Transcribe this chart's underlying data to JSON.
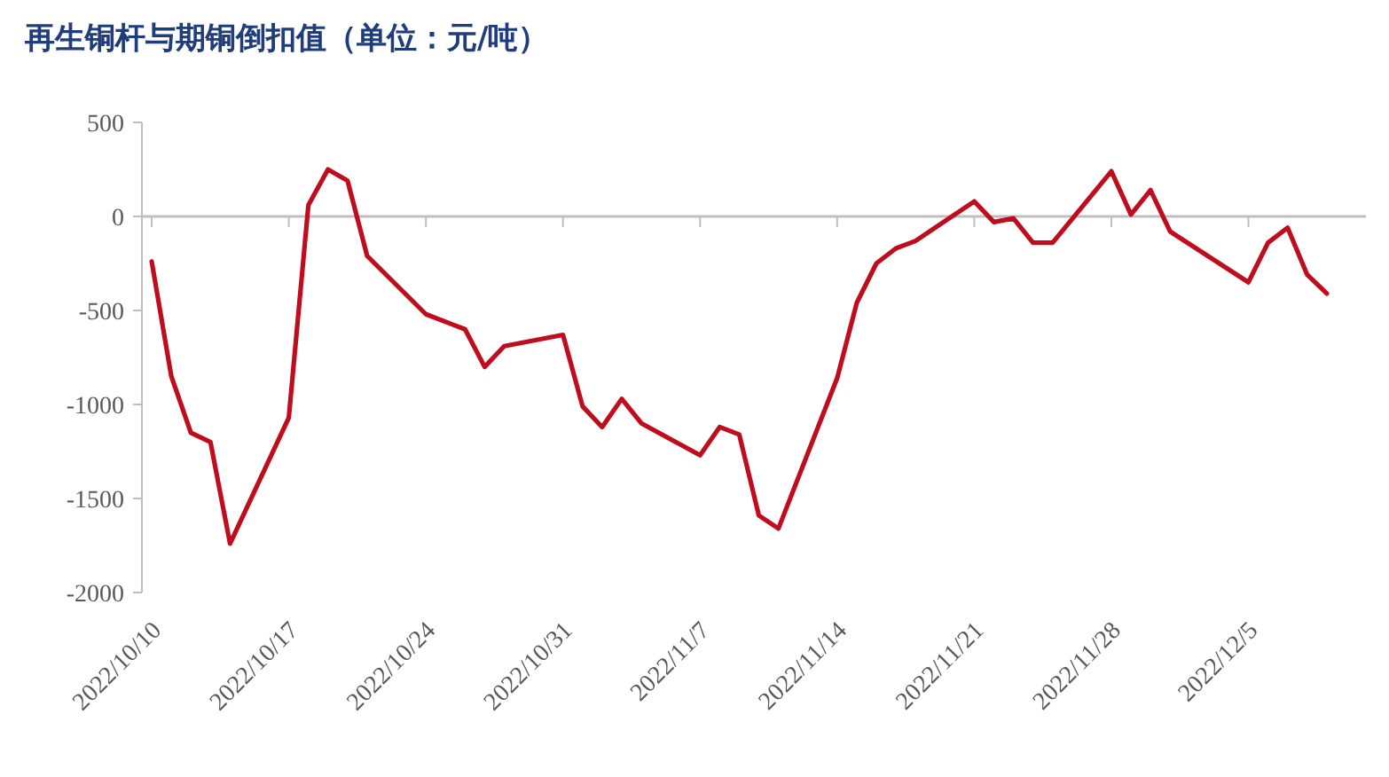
{
  "chart_data": {
    "type": "line",
    "title": "再生铜杆与期铜倒扣值（单位：元/吨）",
    "x": [
      "2022-10-10",
      "2022-10-11",
      "2022-10-12",
      "2022-10-13",
      "2022-10-14",
      "2022-10-17",
      "2022-10-18",
      "2022-10-19",
      "2022-10-20",
      "2022-10-21",
      "2022-10-24",
      "2022-10-26",
      "2022-10-27",
      "2022-10-28",
      "2022-10-31",
      "2022-11-01",
      "2022-11-02",
      "2022-11-03",
      "2022-11-04",
      "2022-11-07",
      "2022-11-08",
      "2022-11-09",
      "2022-11-10",
      "2022-11-11",
      "2022-11-14",
      "2022-11-15",
      "2022-11-16",
      "2022-11-17",
      "2022-11-18",
      "2022-11-21",
      "2022-11-22",
      "2022-11-23",
      "2022-11-24",
      "2022-11-25",
      "2022-11-28",
      "2022-11-29",
      "2022-11-30",
      "2022-12-01",
      "2022-12-05",
      "2022-12-06",
      "2022-12-07",
      "2022-12-08",
      "2022-12-09"
    ],
    "series": [
      {
        "color": "#c00d1e",
        "values": [
          -240,
          -850,
          -1150,
          -1200,
          -1740,
          -1070,
          60,
          250,
          190,
          -210,
          -520,
          -600,
          -800,
          -690,
          -630,
          -1010,
          -1120,
          -970,
          -1100,
          -1270,
          -1120,
          -1160,
          -1590,
          -1660,
          -860,
          -460,
          -250,
          -170,
          -130,
          80,
          -30,
          -10,
          -140,
          -140,
          240,
          10,
          140,
          -80,
          -350,
          -140,
          -60,
          -310,
          -410
        ]
      }
    ],
    "xlim": [
      "2022-10-09T12:00",
      "2022-12-11"
    ],
    "xticks": [
      {
        "value": "2022-10-10",
        "label": "2022/10/10"
      },
      {
        "value": "2022-10-17",
        "label": "2022/10/17"
      },
      {
        "value": "2022-10-24",
        "label": "2022/10/24"
      },
      {
        "value": "2022-10-31",
        "label": "2022/10/31"
      },
      {
        "value": "2022-11-07",
        "label": "2022/11/7"
      },
      {
        "value": "2022-11-14",
        "label": "2022/11/14"
      },
      {
        "value": "2022-11-21",
        "label": "2022/11/21"
      },
      {
        "value": "2022-11-28",
        "label": "2022/11/28"
      },
      {
        "value": "2022-12-05",
        "label": "2022/12/5"
      }
    ],
    "ylim": [
      -2000,
      500
    ],
    "yticks": [
      -2000,
      -1500,
      -1000,
      -500,
      0,
      500
    ],
    "marker": "none",
    "line_style": "solid"
  }
}
